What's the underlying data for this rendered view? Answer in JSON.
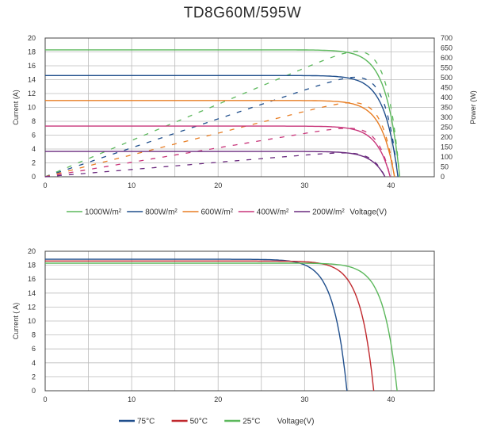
{
  "title": "TD8G60M/595W",
  "chart_data": [
    {
      "type": "line",
      "title": "TD8G60M/595W",
      "xlabel": "Voltage(V)",
      "ylabel": "Current (A)",
      "y2label": "Power (W)",
      "xlim": [
        0,
        45
      ],
      "ylim": [
        0,
        20
      ],
      "y2lim": [
        0,
        700
      ],
      "xticks": [
        0,
        10,
        20,
        30,
        40
      ],
      "yticks": [
        0,
        2,
        4,
        6,
        8,
        10,
        12,
        14,
        16,
        18,
        20
      ],
      "y2ticks": [
        0,
        50,
        100,
        150,
        200,
        250,
        300,
        350,
        400,
        450,
        500,
        550,
        600,
        650,
        700
      ],
      "grid": true,
      "legend": "bottom",
      "series": [
        {
          "name": "1000W/m²",
          "color": "#5cb85c",
          "isc": 18.3,
          "voc": 41.0,
          "vmp": 34.3,
          "imp": 17.35
        },
        {
          "name": "800W/m²",
          "color": "#1f4e8c",
          "isc": 14.6,
          "voc": 40.8,
          "vmp": 34.2,
          "imp": 13.9
        },
        {
          "name": "600W/m²",
          "color": "#e87d23",
          "isc": 11.0,
          "voc": 40.4,
          "vmp": 34.0,
          "imp": 10.4
        },
        {
          "name": "400W/m²",
          "color": "#c8357a",
          "isc": 7.3,
          "voc": 39.9,
          "vmp": 33.7,
          "imp": 6.9
        },
        {
          "name": "200W/m²",
          "color": "#6a2a7e",
          "isc": 3.65,
          "voc": 39.3,
          "vmp": 33.2,
          "imp": 3.45
        }
      ]
    },
    {
      "type": "line",
      "xlabel": "Voltage(V)",
      "ylabel": "Current ( A)",
      "xlim": [
        0,
        45
      ],
      "ylim": [
        0,
        20
      ],
      "xticks": [
        0,
        10,
        20,
        30,
        40
      ],
      "yticks": [
        0,
        2,
        4,
        6,
        8,
        10,
        12,
        14,
        16,
        18,
        20
      ],
      "grid": true,
      "legend": "bottom",
      "series": [
        {
          "name": "75°C",
          "color": "#1f4e8c",
          "isc": 18.85,
          "voc": 34.9
        },
        {
          "name": "50°C",
          "color": "#c0282d",
          "isc": 18.6,
          "voc": 38.0
        },
        {
          "name": "25°C",
          "color": "#5cb85c",
          "isc": 18.3,
          "voc": 40.7
        }
      ]
    }
  ]
}
